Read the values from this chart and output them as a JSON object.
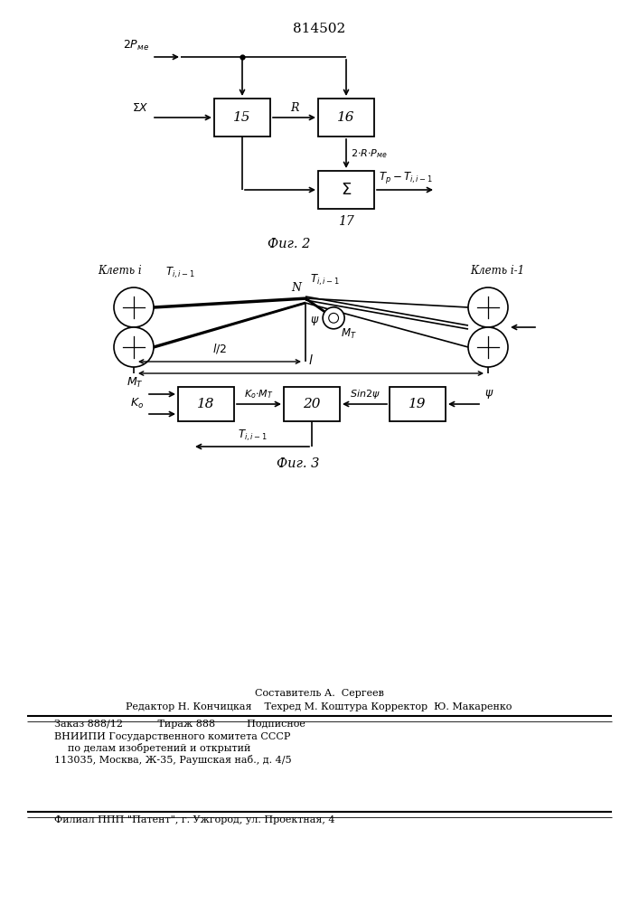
{
  "title": "814502",
  "fig2_label": "Фиг. 2",
  "fig3_label": "Фиг. 3",
  "bg_color": "#ffffff",
  "footer": {
    "line1": "Составитель А.  Сергеев",
    "line2": "Редактор Н. Кончицкая    Техред М. Коштура Корректор  Ю. Макаренко",
    "line3": "Заказ 888/12           Тираж 888          Подписное",
    "line4": "ВНИИПИ Государственного комитета СССР",
    "line5": "по делам изобретений и открытий",
    "line6": "113035, Москва, Ж-35, Раушская наб., д. 4/5",
    "line7": "Филиал ППП \"Патент\", г. Ужгород, ул. Проектная, 4"
  }
}
